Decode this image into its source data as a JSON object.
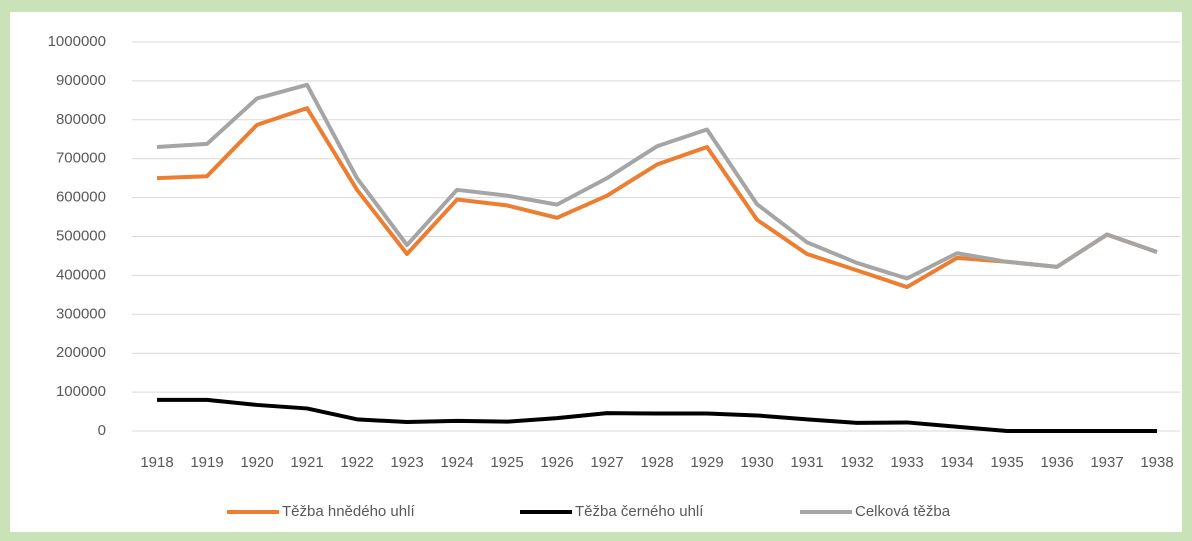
{
  "chart_data": {
    "type": "line",
    "categories": [
      "1918",
      "1919",
      "1920",
      "1921",
      "1922",
      "1923",
      "1924",
      "1925",
      "1926",
      "1927",
      "1928",
      "1929",
      "1930",
      "1931",
      "1932",
      "1933",
      "1934",
      "1935",
      "1936",
      "1937",
      "1938"
    ],
    "series": [
      {
        "name": "Těžba hnědého uhlí",
        "color": "#ed7d31",
        "values": [
          650000,
          655000,
          787000,
          830000,
          620000,
          455000,
          595000,
          580000,
          548000,
          605000,
          685000,
          730000,
          543000,
          455000,
          413000,
          370000,
          445000,
          435000,
          422000,
          505000,
          460000
        ]
      },
      {
        "name": "Těžba černého uhlí",
        "color": "#000000",
        "values": [
          80000,
          80000,
          67000,
          58000,
          30000,
          23000,
          26000,
          24000,
          33000,
          46000,
          45000,
          45000,
          40000,
          30000,
          21000,
          22000,
          11000,
          0,
          0,
          0,
          0
        ]
      },
      {
        "name": "Celková těžba",
        "color": "#a5a5a5",
        "values": [
          730000,
          738000,
          855000,
          890000,
          650000,
          478000,
          620000,
          605000,
          582000,
          650000,
          732000,
          775000,
          583000,
          485000,
          432000,
          392000,
          457000,
          435000,
          422000,
          505000,
          460000
        ]
      }
    ],
    "ylim": [
      0,
      1000000
    ],
    "yticks": [
      0,
      100000,
      200000,
      300000,
      400000,
      500000,
      600000,
      700000,
      800000,
      900000,
      1000000
    ],
    "grid": true,
    "legend": "bottom"
  }
}
